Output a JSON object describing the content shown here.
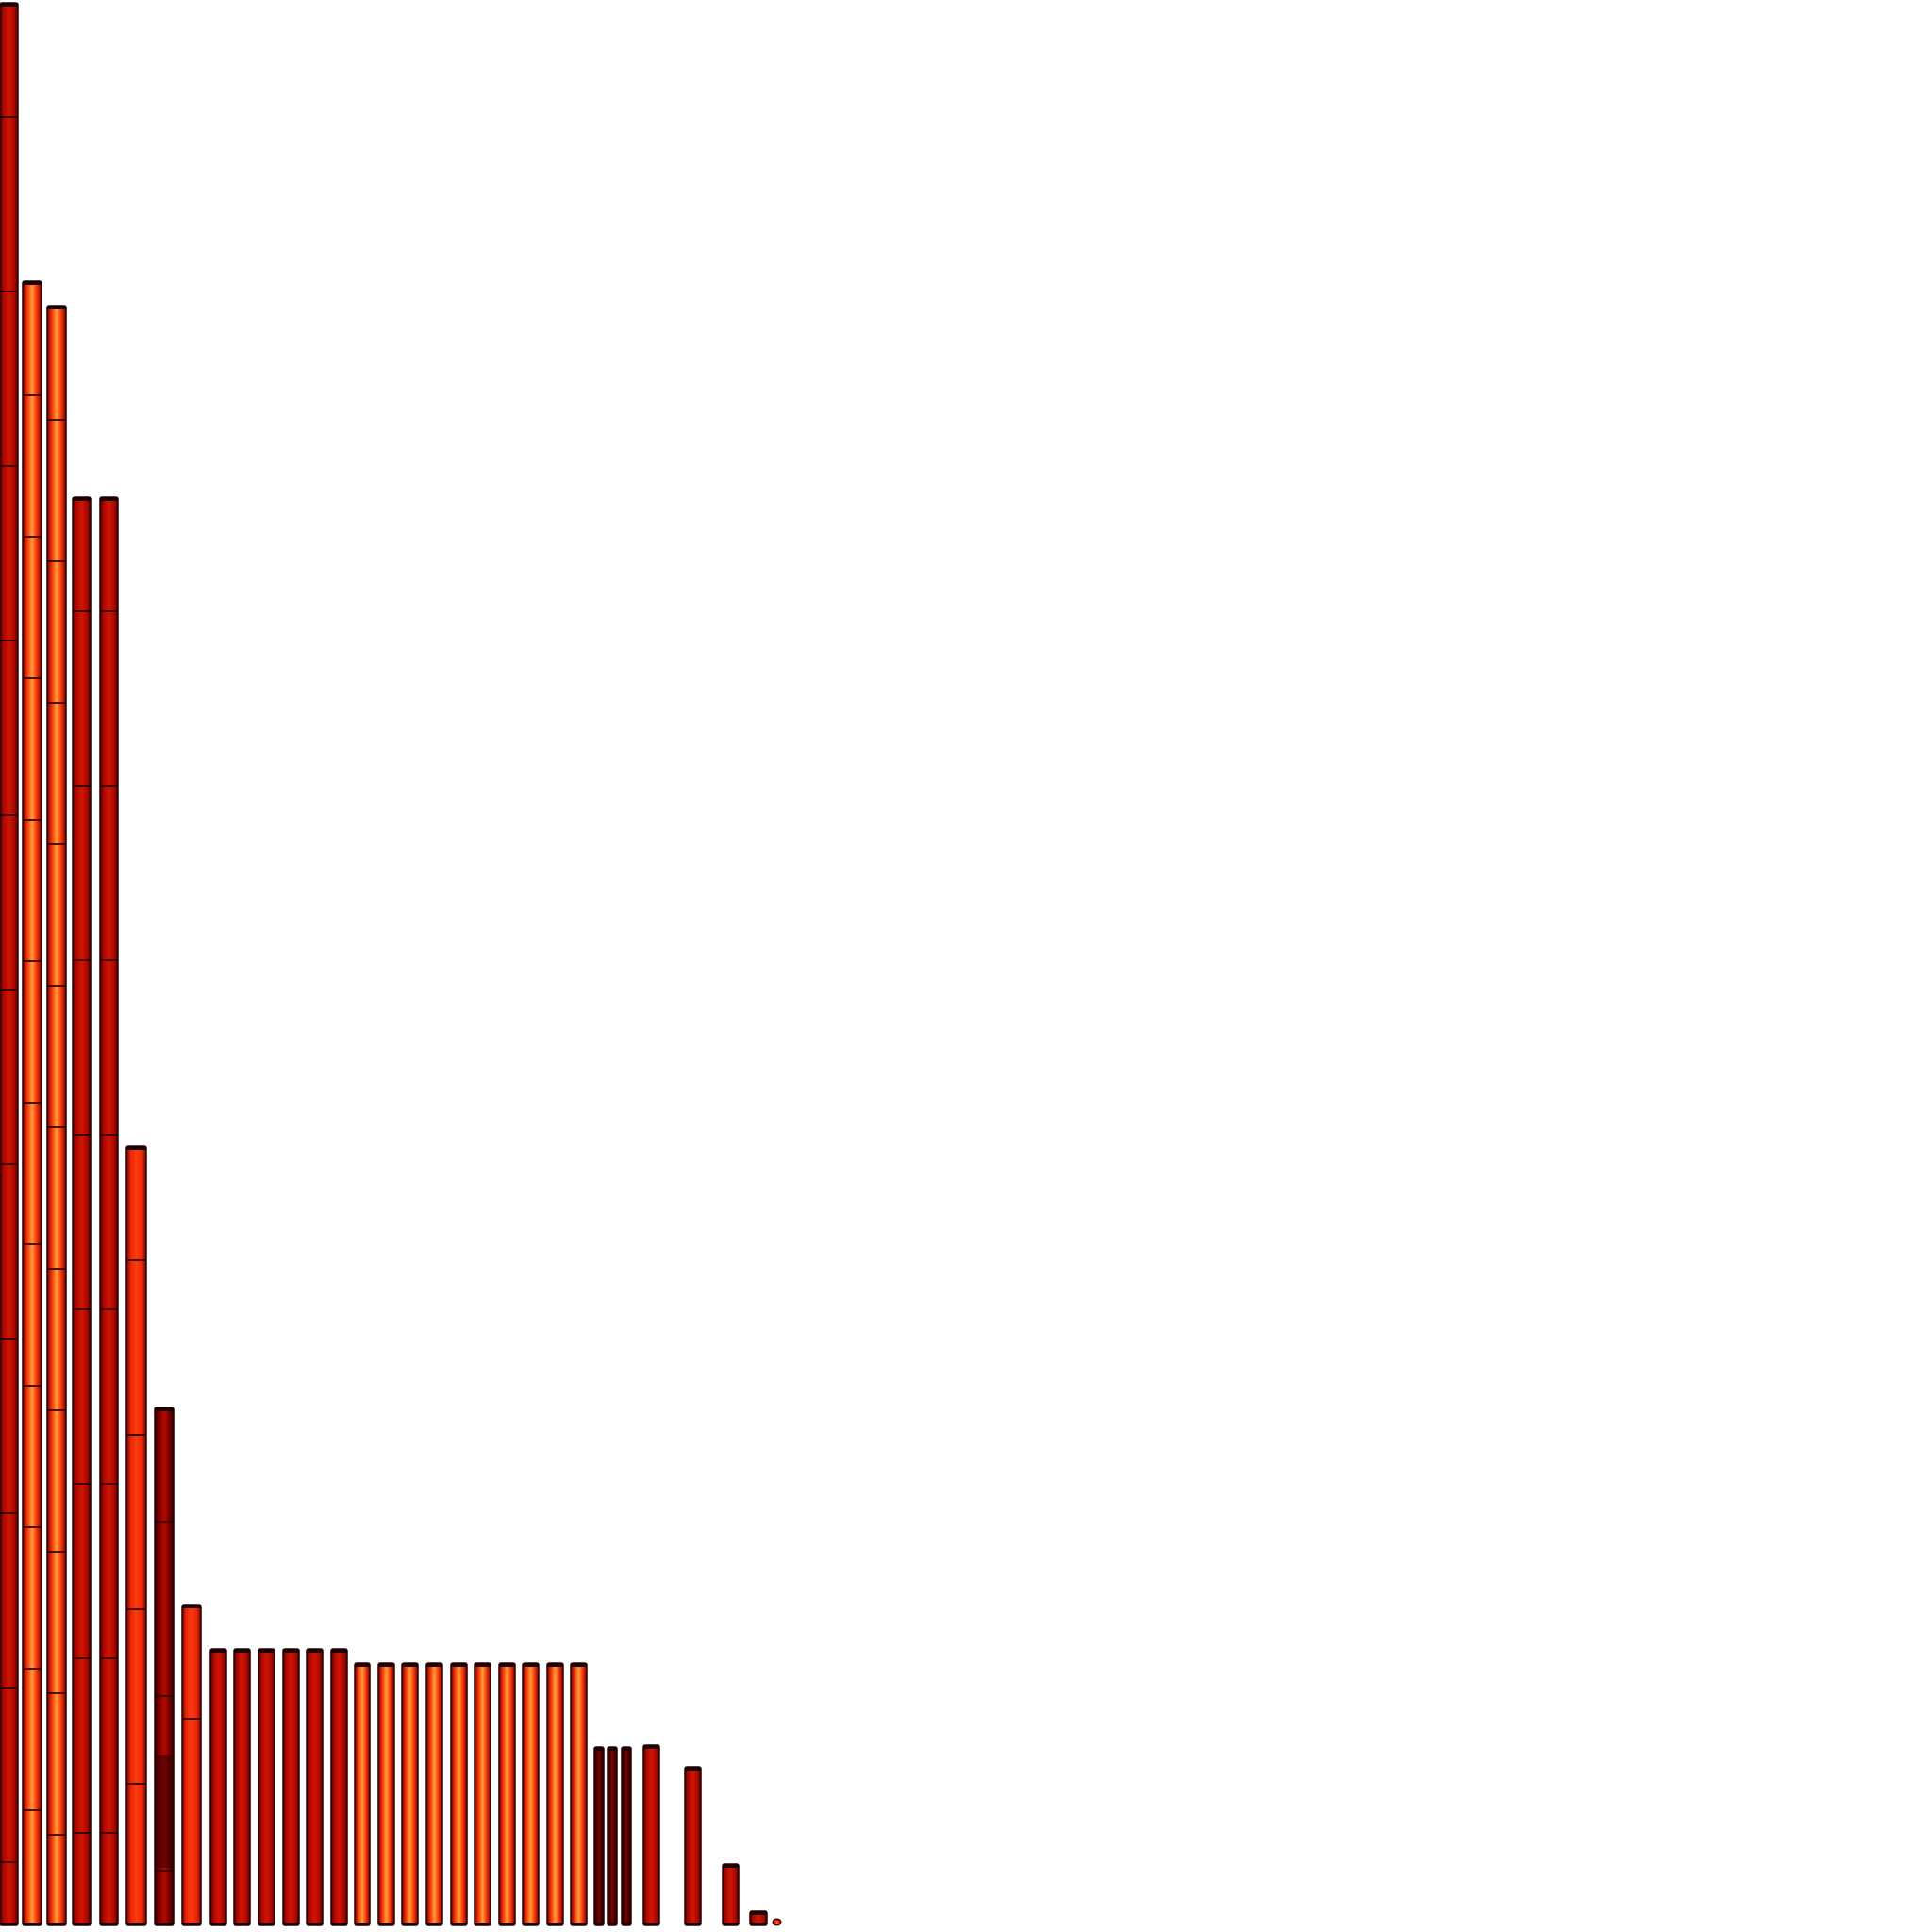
{
  "image": {
    "description_hidden": "",
    "background": "#ffffff",
    "palette": {
      "dark_edge": "#2a0000",
      "deep_red": "#8b0000",
      "red": "#c80f00",
      "bright_red": "#e3260a",
      "orange": "#ff5a14",
      "glow": "#ff9a3c"
    },
    "bar_styles": [
      "red",
      "glow",
      "glow",
      "red",
      "red",
      "bright",
      "deep",
      "bright",
      "red",
      "red",
      "red",
      "red",
      "red",
      "red",
      "glow",
      "glow",
      "glow",
      "glow",
      "glow",
      "glow",
      "glow",
      "glow",
      "glow",
      "glow",
      "dark",
      "dark",
      "dark",
      "red",
      "red",
      "red",
      "red",
      "dot"
    ]
  }
}
